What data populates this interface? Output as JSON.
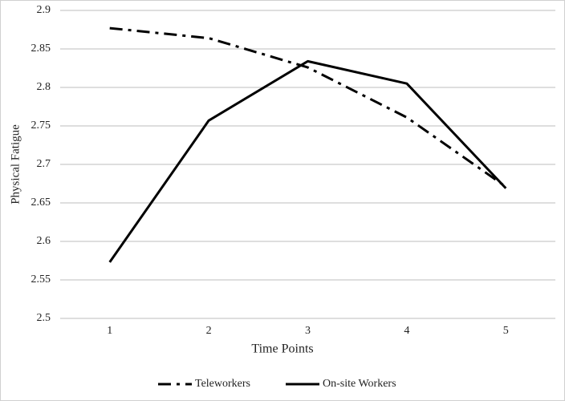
{
  "chart_data": {
    "type": "line",
    "x_label": "Time Points",
    "y_label": "Physical Fatigue",
    "categories": [
      "1",
      "2",
      "3",
      "4",
      "5"
    ],
    "series": [
      {
        "name": "Teleworkers",
        "color": "#000000",
        "style": "dashdot",
        "values": [
          2.877,
          2.864,
          2.826,
          2.761,
          2.671
        ]
      },
      {
        "name": "On-site Workers",
        "color": "#000000",
        "style": "solid",
        "values": [
          2.573,
          2.757,
          2.834,
          2.805,
          2.669
        ]
      }
    ],
    "ylim": [
      2.5,
      2.9
    ],
    "yticks": [
      2.5,
      2.55,
      2.6,
      2.65,
      2.7,
      2.75,
      2.8,
      2.85,
      2.9
    ],
    "grid": true,
    "legend": "bottom"
  }
}
